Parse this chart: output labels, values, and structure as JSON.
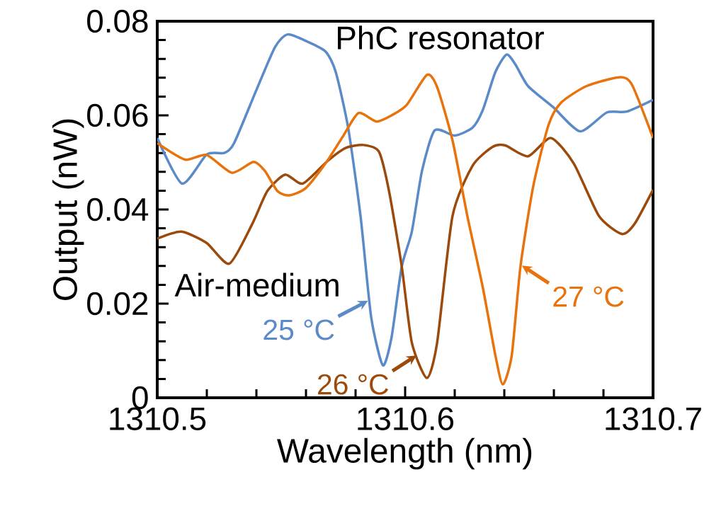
{
  "chart_data": {
    "type": "line",
    "xlabel": "Wavelength (nm)",
    "ylabel": "Output (nW)",
    "xlim": [
      1310.5,
      1310.7
    ],
    "ylim": [
      0,
      0.08
    ],
    "xticks": [
      1310.5,
      {
        "value": 1310.52,
        "label": null
      },
      {
        "value": 1310.54,
        "label": null
      },
      {
        "value": 1310.56,
        "label": null
      },
      {
        "value": 1310.58,
        "label": null
      },
      1310.6,
      {
        "value": 1310.62,
        "label": null
      },
      {
        "value": 1310.64,
        "label": null
      },
      {
        "value": 1310.66,
        "label": null
      },
      {
        "value": 1310.68,
        "label": null
      },
      1310.7
    ],
    "yticks": [
      0,
      {
        "value": 0.004,
        "label": null
      },
      {
        "value": 0.008,
        "label": null
      },
      {
        "value": 0.012,
        "label": null
      },
      {
        "value": 0.016,
        "label": null
      },
      0.02,
      {
        "value": 0.024,
        "label": null
      },
      {
        "value": 0.028,
        "label": null
      },
      {
        "value": 0.032,
        "label": null
      },
      {
        "value": 0.036,
        "label": null
      },
      0.04,
      {
        "value": 0.044,
        "label": null
      },
      {
        "value": 0.048,
        "label": null
      },
      {
        "value": 0.052,
        "label": null
      },
      {
        "value": 0.056,
        "label": null
      },
      0.06,
      {
        "value": 0.064,
        "label": null
      },
      {
        "value": 0.068,
        "label": null
      },
      {
        "value": 0.072,
        "label": null
      },
      {
        "value": 0.076,
        "label": null
      },
      0.08
    ],
    "grid": false,
    "marker": "none",
    "line_style": "solid",
    "series": [
      {
        "color": "#5a8ac8",
        "x": [
          1310.5,
          1310.51,
          1310.52,
          1310.527,
          1310.531,
          1310.54,
          1310.5475,
          1310.5526,
          1310.5608,
          1310.568,
          1310.572,
          1310.577,
          1310.582,
          1310.5863,
          1310.591,
          1310.5945,
          1310.5986,
          1310.6027,
          1310.6068,
          1310.6119,
          1310.62,
          1310.6272,
          1310.6313,
          1310.6364,
          1310.6409,
          1310.6445,
          1310.6496,
          1310.6598,
          1310.6706,
          1310.6813,
          1310.6894,
          1310.7
        ],
        "values": [
          0.0552,
          0.0455,
          0.0517,
          0.052,
          0.0541,
          0.0654,
          0.0745,
          0.0772,
          0.0756,
          0.0735,
          0.0692,
          0.0574,
          0.0386,
          0.0171,
          0.0069,
          0.0128,
          0.0278,
          0.0353,
          0.0482,
          0.0568,
          0.0557,
          0.0574,
          0.0611,
          0.0692,
          0.0729,
          0.0708,
          0.0662,
          0.0617,
          0.0566,
          0.0606,
          0.0608,
          0.0633
        ]
      },
      {
        "color": "#9c4a0c",
        "x": [
          1310.5,
          1310.5097,
          1310.5199,
          1310.5291,
          1310.5383,
          1310.5444,
          1310.5516,
          1310.5587,
          1310.5689,
          1310.5761,
          1310.5832,
          1310.5894,
          1310.5935,
          1310.5986,
          1310.6027,
          1310.6088,
          1310.6129,
          1310.6191,
          1310.6272,
          1310.6353,
          1310.6404,
          1310.6496,
          1310.6588,
          1310.668,
          1310.6782,
          1310.6874,
          1310.6925,
          1310.7
        ],
        "values": [
          0.0338,
          0.0353,
          0.0329,
          0.0285,
          0.0369,
          0.0439,
          0.0474,
          0.0455,
          0.0504,
          0.0531,
          0.0537,
          0.0523,
          0.0439,
          0.028,
          0.0117,
          0.0042,
          0.0117,
          0.0386,
          0.0493,
          0.0533,
          0.0536,
          0.0513,
          0.0552,
          0.0498,
          0.0386,
          0.0348,
          0.0369,
          0.0442
        ]
      },
      {
        "color": "#e8720c",
        "x": [
          1310.5,
          1310.5112,
          1310.5199,
          1310.5301,
          1310.5388,
          1310.5434,
          1310.5485,
          1310.5531,
          1310.5598,
          1310.5679,
          1310.5751,
          1310.5812,
          1310.5884,
          1310.5945,
          1310.6006,
          1310.6088,
          1310.6129,
          1310.6191,
          1310.6251,
          1310.6313,
          1310.6364,
          1310.6394,
          1310.643,
          1310.6465,
          1310.6517,
          1310.6578,
          1310.6629,
          1310.6731,
          1310.6864,
          1310.6915,
          1310.7
        ],
        "values": [
          0.0541,
          0.0506,
          0.0516,
          0.0478,
          0.0501,
          0.0482,
          0.0439,
          0.043,
          0.0445,
          0.0498,
          0.0557,
          0.0605,
          0.0587,
          0.06,
          0.0622,
          0.0686,
          0.066,
          0.0547,
          0.0386,
          0.0235,
          0.009,
          0.0028,
          0.009,
          0.0278,
          0.045,
          0.0579,
          0.0627,
          0.0662,
          0.0681,
          0.0665,
          0.0552
        ]
      }
    ],
    "annotations": [
      "PhC resonator",
      "Air-medium",
      {
        "text": "25 °C",
        "x": 1310.585,
        "y": 0.0206
      },
      {
        "text": "26 °C",
        "x": 1310.6046,
        "y": 0.009
      },
      {
        "text": "27 °C",
        "x": 1310.6471,
        "y": 0.0281
      }
    ]
  }
}
